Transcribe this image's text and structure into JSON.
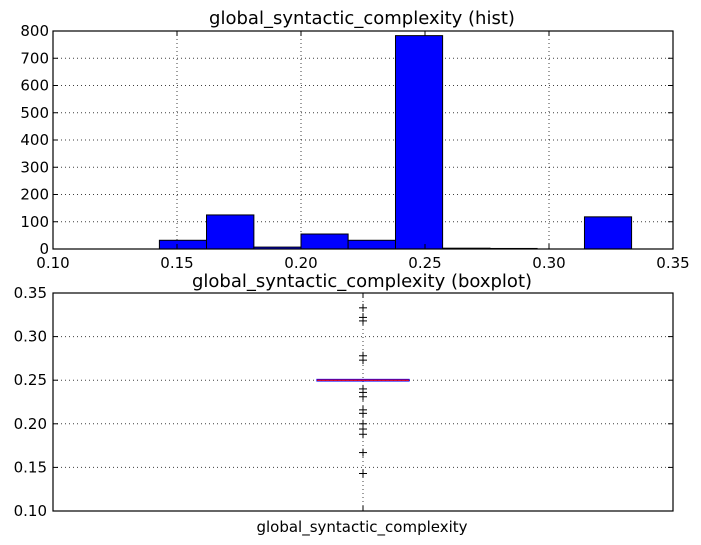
{
  "chart_data": [
    {
      "type": "bar",
      "title": "global_syntactic_complexity (hist)",
      "xlabel": "",
      "ylabel": "",
      "xlim": [
        0.1,
        0.35
      ],
      "ylim": [
        0,
        800
      ],
      "xticks": [
        0.1,
        0.15,
        0.2,
        0.25,
        0.3,
        0.35
      ],
      "xtick_labels": [
        "0.10",
        "0.15",
        "0.20",
        "0.25",
        "0.30",
        "0.35"
      ],
      "yticks": [
        0,
        100,
        200,
        300,
        400,
        500,
        600,
        700,
        800
      ],
      "ytick_labels": [
        "0",
        "100",
        "200",
        "300",
        "400",
        "500",
        "600",
        "700",
        "800"
      ],
      "grid": true,
      "bar_color": "#0000ff",
      "bins": [
        {
          "x0": 0.1429,
          "x1": 0.1619,
          "count": 32
        },
        {
          "x0": 0.1619,
          "x1": 0.181,
          "count": 125
        },
        {
          "x0": 0.181,
          "x1": 0.2,
          "count": 7
        },
        {
          "x0": 0.2,
          "x1": 0.219,
          "count": 55
        },
        {
          "x0": 0.219,
          "x1": 0.2381,
          "count": 32
        },
        {
          "x0": 0.2381,
          "x1": 0.2571,
          "count": 783
        },
        {
          "x0": 0.2571,
          "x1": 0.2762,
          "count": 3
        },
        {
          "x0": 0.2762,
          "x1": 0.2952,
          "count": 2
        },
        {
          "x0": 0.2952,
          "x1": 0.3143,
          "count": 0
        },
        {
          "x0": 0.3143,
          "x1": 0.3333,
          "count": 118
        }
      ]
    },
    {
      "type": "box",
      "title": "global_syntactic_complexity (boxplot)",
      "ylim": [
        0.1,
        0.35
      ],
      "yticks": [
        0.1,
        0.15,
        0.2,
        0.25,
        0.3,
        0.35
      ],
      "ytick_labels": [
        "0.10",
        "0.15",
        "0.20",
        "0.25",
        "0.30",
        "0.35"
      ],
      "grid": true,
      "category": "global_syntactic_complexity",
      "median": 0.25,
      "q1": 0.25,
      "q3": 0.25,
      "whisker_low": 0.25,
      "whisker_high": 0.25,
      "box_color": "#0000ff",
      "median_color": "#ff0000",
      "fliers": [
        0.333,
        0.322,
        0.318,
        0.278,
        0.273,
        0.24,
        0.236,
        0.231,
        0.216,
        0.212,
        0.2,
        0.194,
        0.188,
        0.167,
        0.143
      ]
    }
  ]
}
